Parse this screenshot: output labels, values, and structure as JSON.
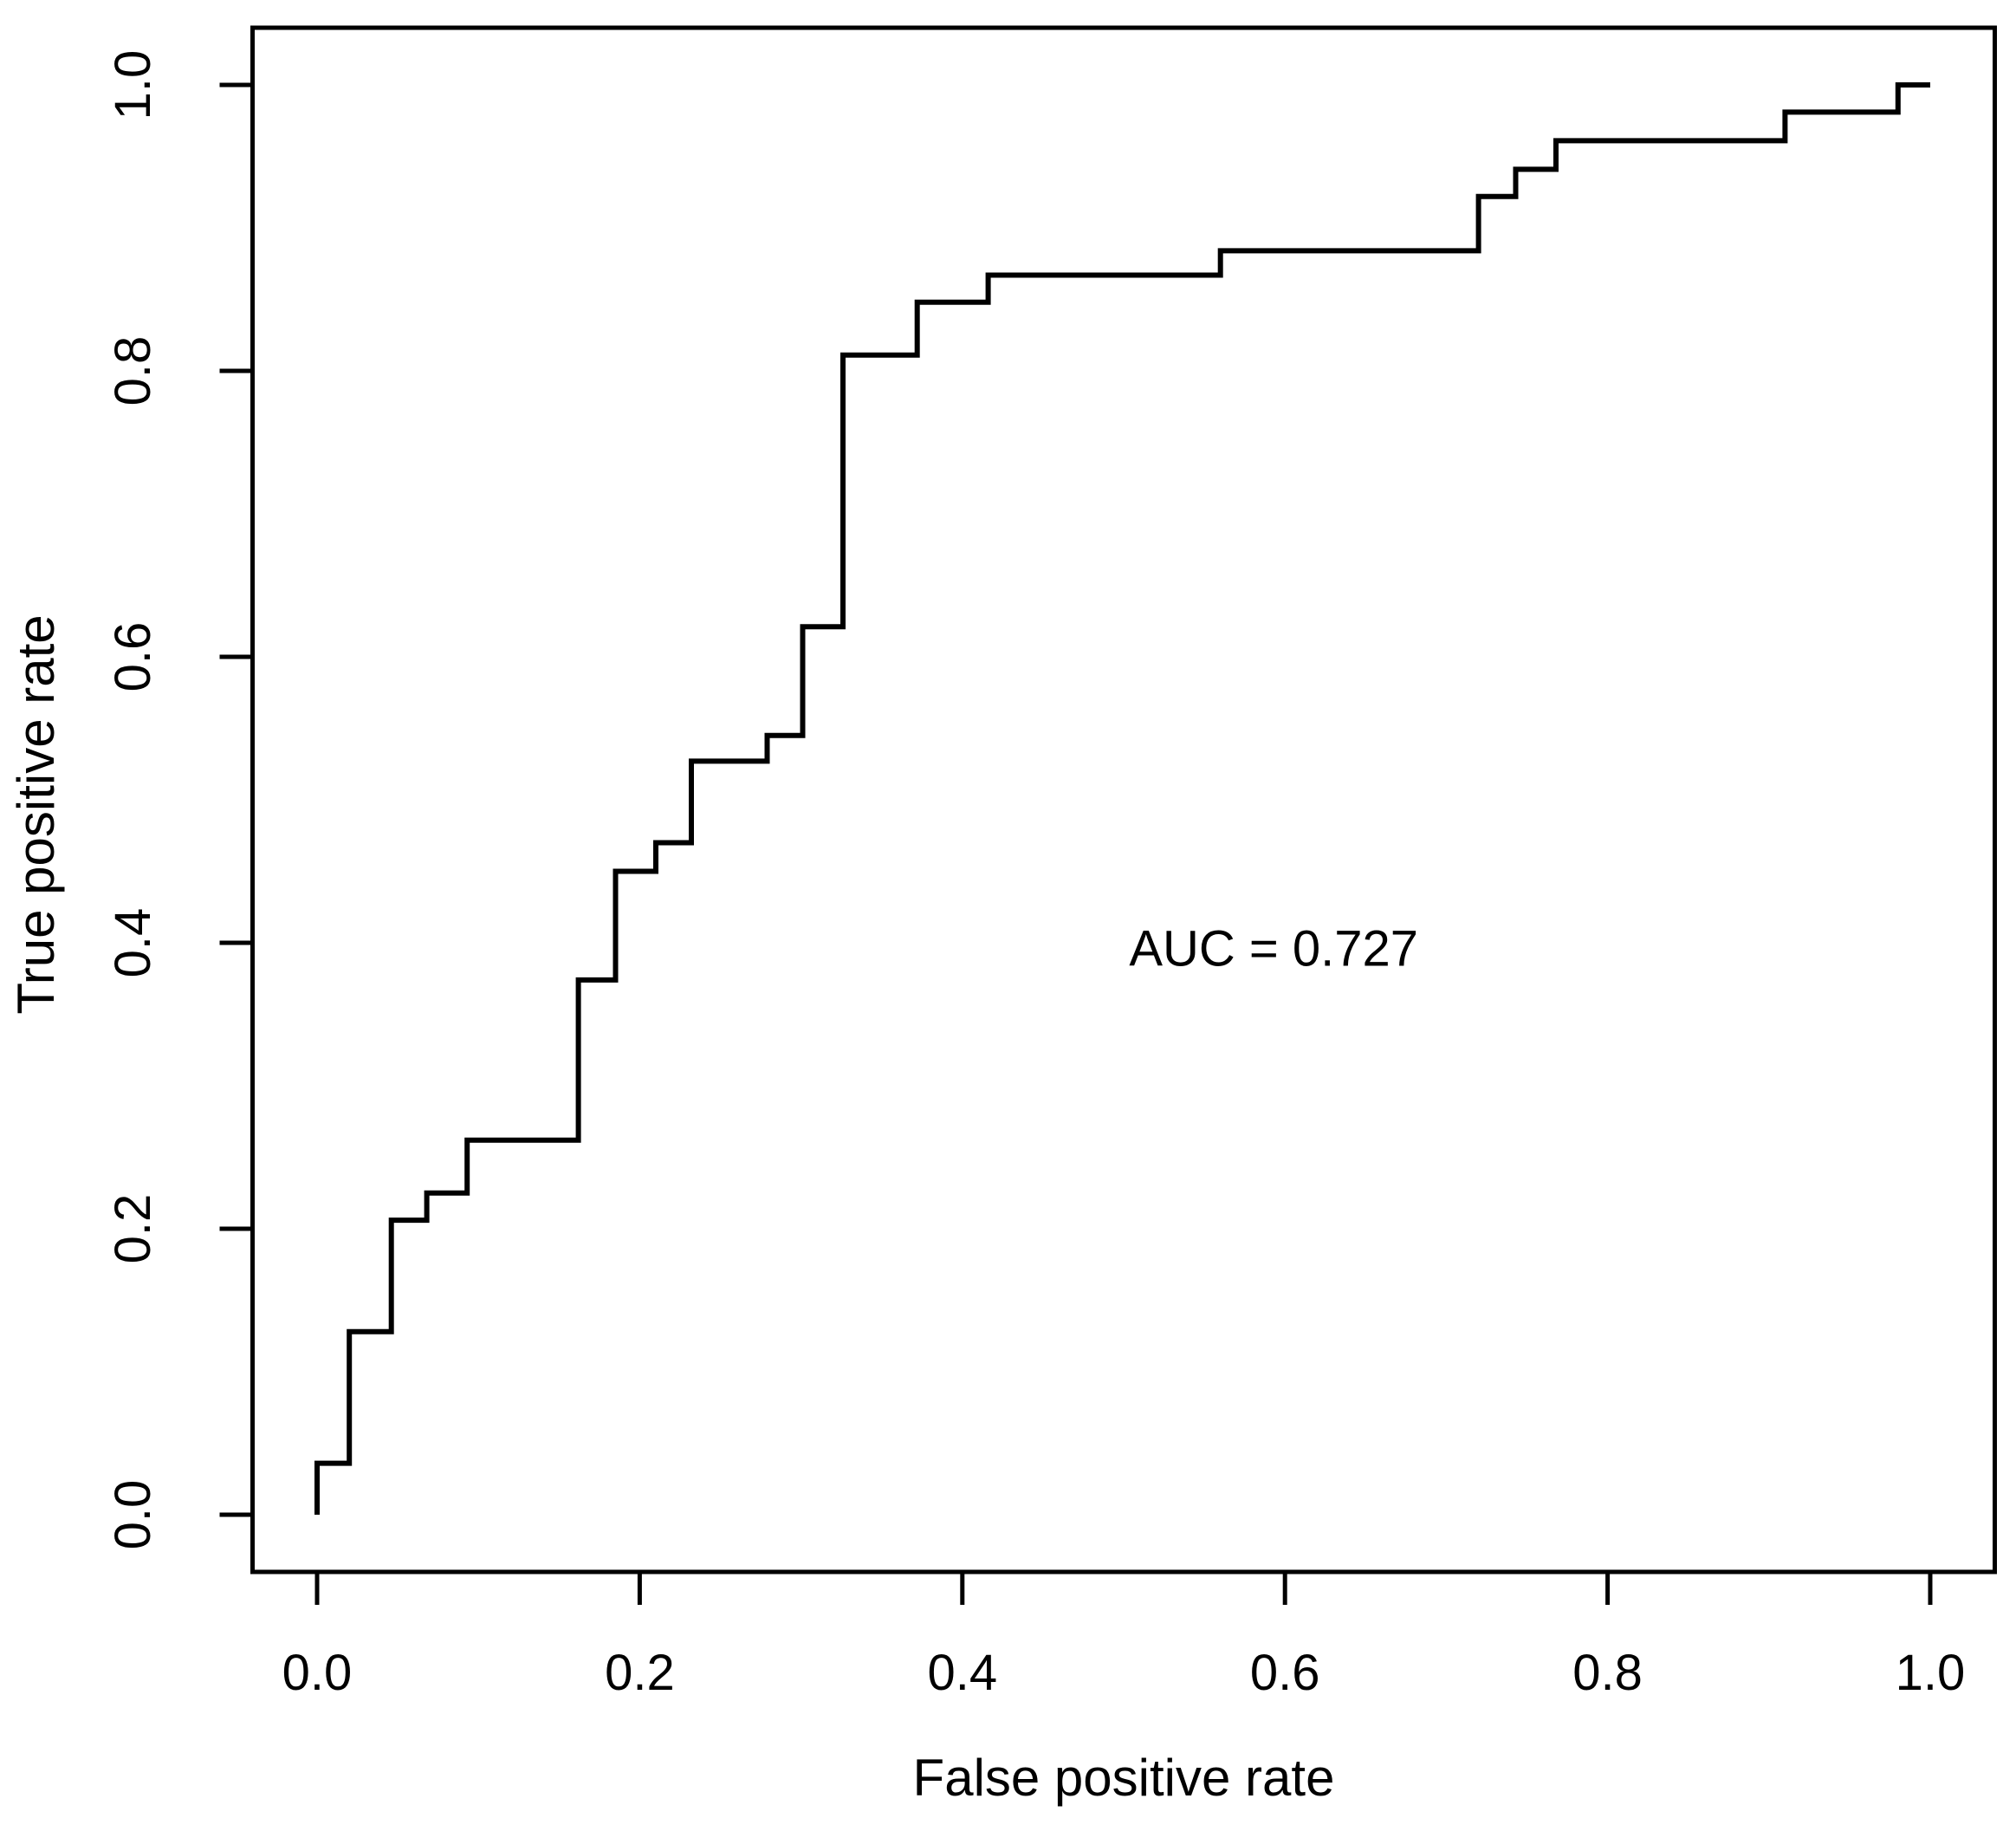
{
  "chart_data": {
    "type": "line",
    "subtype": "roc-step-curve",
    "title": "",
    "xlabel": "False positive rate",
    "ylabel": "True positive rate",
    "xlim": [
      0.0,
      1.0
    ],
    "ylim": [
      0.0,
      1.0
    ],
    "grid": false,
    "legend_position": "none",
    "background_color": "#ffffff",
    "line_color": "#000000",
    "x_ticks": [
      {
        "value": 0.0,
        "label": "0.0"
      },
      {
        "value": 0.2,
        "label": "0.2"
      },
      {
        "value": 0.4,
        "label": "0.4"
      },
      {
        "value": 0.6,
        "label": "0.6"
      },
      {
        "value": 0.8,
        "label": "0.8"
      },
      {
        "value": 1.0,
        "label": "1.0"
      }
    ],
    "y_ticks": [
      {
        "value": 0.0,
        "label": "0.0"
      },
      {
        "value": 0.2,
        "label": "0.2"
      },
      {
        "value": 0.4,
        "label": "0.4"
      },
      {
        "value": 0.6,
        "label": "0.6"
      },
      {
        "value": 0.8,
        "label": "0.8"
      },
      {
        "value": 1.0,
        "label": "1.0"
      }
    ],
    "annotation": {
      "text": "AUC = 0.727",
      "x": 0.593,
      "y": 0.396
    },
    "auc": 0.727,
    "series": [
      {
        "name": "ROC curve",
        "points": [
          [
            0.0,
            0.0
          ],
          [
            0.0,
            0.036
          ],
          [
            0.02,
            0.036
          ],
          [
            0.02,
            0.128
          ],
          [
            0.046,
            0.128
          ],
          [
            0.046,
            0.206
          ],
          [
            0.068,
            0.206
          ],
          [
            0.068,
            0.225
          ],
          [
            0.093,
            0.225
          ],
          [
            0.093,
            0.262
          ],
          [
            0.162,
            0.262
          ],
          [
            0.162,
            0.374
          ],
          [
            0.185,
            0.374
          ],
          [
            0.185,
            0.45
          ],
          [
            0.21,
            0.45
          ],
          [
            0.21,
            0.47
          ],
          [
            0.232,
            0.47
          ],
          [
            0.232,
            0.527
          ],
          [
            0.279,
            0.527
          ],
          [
            0.279,
            0.545
          ],
          [
            0.301,
            0.545
          ],
          [
            0.301,
            0.621
          ],
          [
            0.326,
            0.621
          ],
          [
            0.326,
            0.811
          ],
          [
            0.372,
            0.811
          ],
          [
            0.372,
            0.848
          ],
          [
            0.416,
            0.848
          ],
          [
            0.416,
            0.867
          ],
          [
            0.56,
            0.867
          ],
          [
            0.56,
            0.884
          ],
          [
            0.72,
            0.884
          ],
          [
            0.72,
            0.922
          ],
          [
            0.743,
            0.922
          ],
          [
            0.743,
            0.941
          ],
          [
            0.768,
            0.941
          ],
          [
            0.768,
            0.961
          ],
          [
            0.91,
            0.961
          ],
          [
            0.91,
            0.981
          ],
          [
            0.98,
            0.981
          ],
          [
            0.98,
            1.0
          ],
          [
            1.0,
            1.0
          ]
        ]
      }
    ]
  }
}
